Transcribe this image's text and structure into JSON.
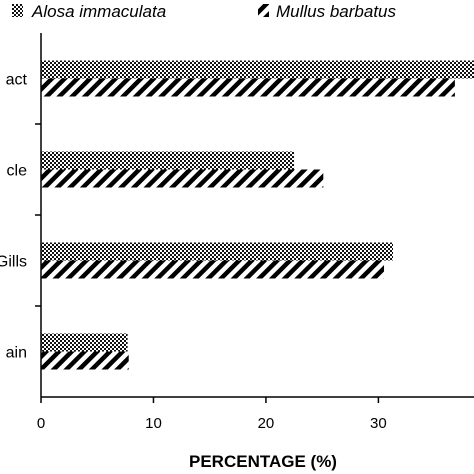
{
  "chart_data": {
    "type": "bar",
    "orientation": "horizontal",
    "categories": [
      "act",
      "cle",
      "Gills",
      "ain"
    ],
    "series": [
      {
        "name": "Alosa immaculata",
        "values": [
          38.5,
          22.5,
          31.3,
          7.7
        ],
        "pattern": "dotted"
      },
      {
        "name": "Mullus barbatus",
        "values": [
          36.8,
          25.1,
          30.5,
          7.8
        ],
        "pattern": "diagonal-hatch"
      }
    ],
    "xlabel": "PERCENTAGE (%)",
    "ylabel": "",
    "xlim": [
      0,
      38.5
    ],
    "xticks": [
      "0",
      "10",
      "20",
      "30"
    ],
    "xtick_values": [
      0,
      10,
      20,
      30
    ],
    "legend_position": "top",
    "grid": false
  }
}
